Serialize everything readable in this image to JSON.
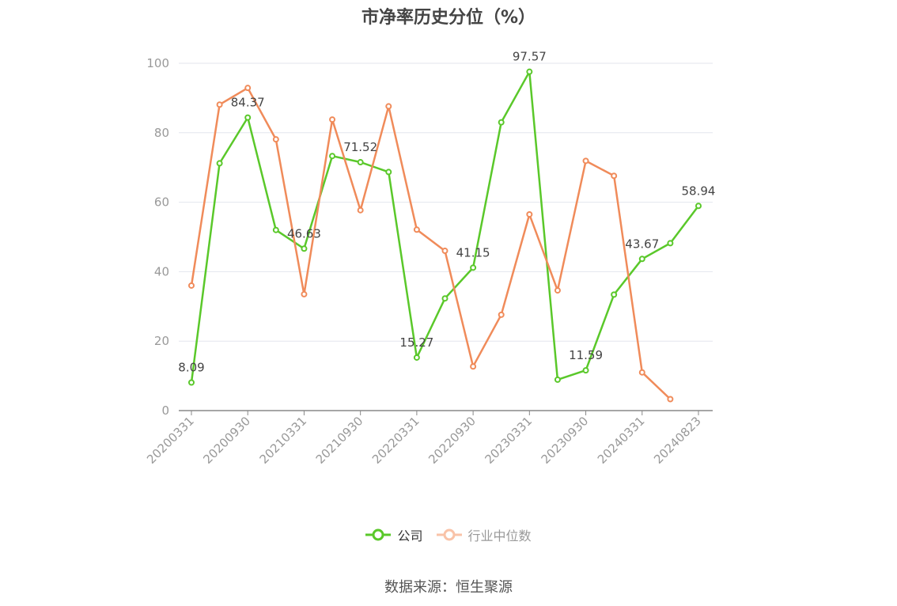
{
  "chart_data": {
    "type": "line",
    "title": "市净率历史分位（%）",
    "ylim": [
      0,
      100
    ],
    "yticks": [
      0,
      20,
      40,
      60,
      80,
      100
    ],
    "x": [
      "20200331",
      "20200630",
      "20200930",
      "20201231",
      "20210331",
      "20210630",
      "20210930",
      "20211231",
      "20220331",
      "20220630",
      "20220930",
      "20221231",
      "20230331",
      "20230630",
      "20230930",
      "20231231",
      "20240331",
      "20240630",
      "20240823"
    ],
    "xtick_labels": [
      "20200331",
      "20200930",
      "20210331",
      "20210930",
      "20220331",
      "20220930",
      "20230331",
      "20230930",
      "20240331",
      "20240823"
    ],
    "grid": true,
    "legend_position": "bottom",
    "series": [
      {
        "name": "公司",
        "color": "#5ac82a",
        "values": [
          8.09,
          71.2,
          84.37,
          52.0,
          46.63,
          73.3,
          71.52,
          68.7,
          15.27,
          32.3,
          41.15,
          83.0,
          97.57,
          8.9,
          11.59,
          33.4,
          43.67,
          48.2,
          58.94
        ],
        "labels": {
          "0": "8.09",
          "2": "84.37",
          "4": "46.63",
          "6": "71.52",
          "8": "15.27",
          "10": "41.15",
          "12": "97.57",
          "14": "11.59",
          "16": "43.67",
          "18": "58.94"
        }
      },
      {
        "name": "行业中位数",
        "color": "#f08b5a",
        "values": [
          36.0,
          88.1,
          92.9,
          78.1,
          33.5,
          83.8,
          57.7,
          87.6,
          52.1,
          46.0,
          12.7,
          27.6,
          56.5,
          34.6,
          71.9,
          67.6,
          11.0,
          3.3,
          null
        ]
      }
    ]
  },
  "legend": {
    "items": [
      "公司",
      "行业中位数"
    ]
  },
  "source": "数据来源：恒生聚源"
}
